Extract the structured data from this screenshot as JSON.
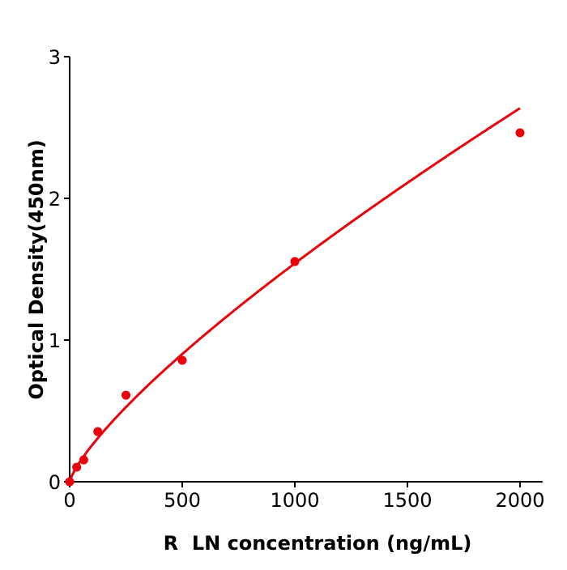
{
  "chart_data": {
    "type": "scatter",
    "title": "",
    "xlabel": "R  LN concentration (ng/mL)",
    "ylabel": "Optical Density(450nm)",
    "xlim": [
      0,
      2100
    ],
    "ylim": [
      0,
      3
    ],
    "xticks": [
      0,
      500,
      1000,
      1500,
      2000
    ],
    "yticks": [
      0,
      1,
      2,
      3
    ],
    "grid": false,
    "color": "#e8000b",
    "fit": "smooth standard curve",
    "series": [
      {
        "x": [
          0,
          31.25,
          62.5,
          125,
          250,
          500,
          1000,
          2000
        ],
        "y": [
          0.0,
          0.103,
          0.154,
          0.354,
          0.611,
          0.857,
          1.554,
          2.463
        ]
      }
    ]
  }
}
